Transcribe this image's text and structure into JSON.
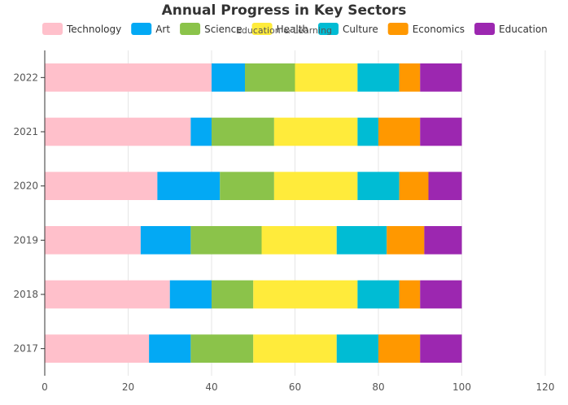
{
  "chart_data": {
    "type": "bar",
    "orientation": "horizontal",
    "stacked": true,
    "title": "Annual Progress in Key Sectors",
    "subtitle": "Education & Learning",
    "xlabel": "",
    "ylabel": "",
    "xlim": [
      0,
      120
    ],
    "xticks": [
      0,
      20,
      40,
      60,
      80,
      100,
      120
    ],
    "grid": true,
    "legend_position": "top",
    "categories": [
      "2017",
      "2018",
      "2019",
      "2020",
      "2021",
      "2022"
    ],
    "series": [
      {
        "name": "Technology",
        "color": "#FFC0CB",
        "values": [
          25,
          30,
          23,
          27,
          35,
          40
        ]
      },
      {
        "name": "Art",
        "color": "#03A9F4",
        "values": [
          10,
          10,
          12,
          15,
          5,
          8
        ]
      },
      {
        "name": "Science",
        "color": "#8BC34A",
        "values": [
          15,
          10,
          17,
          13,
          15,
          12
        ]
      },
      {
        "name": "Health",
        "color": "#FFEB3B",
        "values": [
          20,
          25,
          18,
          20,
          20,
          15
        ]
      },
      {
        "name": "Culture",
        "color": "#00BCD4",
        "values": [
          10,
          10,
          12,
          10,
          5,
          10
        ]
      },
      {
        "name": "Economics",
        "color": "#FF9800",
        "values": [
          10,
          5,
          9,
          7,
          10,
          5
        ]
      },
      {
        "name": "Education",
        "color": "#9C27B0",
        "values": [
          10,
          10,
          9,
          8,
          10,
          10
        ]
      }
    ]
  }
}
